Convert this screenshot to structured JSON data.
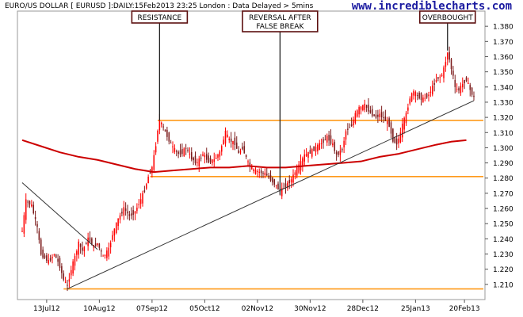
{
  "header": {
    "title": "EURO/US DOLLAR [ EURUSD ]:DAILY:15Feb2013 23:25 London : Data Delayed > 5mins",
    "watermark": "www.incrediblecharts.com"
  },
  "chart_data": {
    "type": "candlestick",
    "ylim": [
      1.2,
      1.39
    ],
    "y_ticks": [
      "1.380",
      "1.370",
      "1.360",
      "1.350",
      "1.340",
      "1.330",
      "1.320",
      "1.310",
      "1.300",
      "1.290",
      "1.280",
      "1.270",
      "1.260",
      "1.250",
      "1.240",
      "1.230",
      "1.220",
      "1.210"
    ],
    "x_ticks": [
      {
        "label": "13Jul12",
        "day": 13
      },
      {
        "label": "10Aug12",
        "day": 41
      },
      {
        "label": "07Sep12",
        "day": 69
      },
      {
        "label": "05Oct12",
        "day": 97
      },
      {
        "label": "02Nov12",
        "day": 125
      },
      {
        "label": "30Nov12",
        "day": 153
      },
      {
        "label": "28Dec12",
        "day": 181
      },
      {
        "label": "25Jan13",
        "day": 209
      },
      {
        "label": "20Feb13",
        "day": 235
      }
    ],
    "xlim": [
      0,
      240
    ],
    "close_path": [
      [
        0,
        1.245
      ],
      [
        2,
        1.265
      ],
      [
        5,
        1.262
      ],
      [
        8,
        1.247
      ],
      [
        10,
        1.23
      ],
      [
        14,
        1.225
      ],
      [
        17,
        1.23
      ],
      [
        20,
        1.222
      ],
      [
        22,
        1.213
      ],
      [
        24,
        1.209
      ],
      [
        26,
        1.22
      ],
      [
        28,
        1.228
      ],
      [
        30,
        1.237
      ],
      [
        32,
        1.232
      ],
      [
        35,
        1.24
      ],
      [
        38,
        1.235
      ],
      [
        40,
        1.237
      ],
      [
        43,
        1.228
      ],
      [
        46,
        1.233
      ],
      [
        48,
        1.243
      ],
      [
        51,
        1.253
      ],
      [
        54,
        1.26
      ],
      [
        57,
        1.255
      ],
      [
        60,
        1.258
      ],
      [
        63,
        1.266
      ],
      [
        65,
        1.272
      ],
      [
        67,
        1.281
      ],
      [
        69,
        1.287
      ],
      [
        71,
        1.302
      ],
      [
        72,
        1.312
      ],
      [
        73,
        1.318
      ],
      [
        75,
        1.313
      ],
      [
        78,
        1.305
      ],
      [
        80,
        1.3
      ],
      [
        83,
        1.296
      ],
      [
        85,
        1.297
      ],
      [
        87,
        1.3
      ],
      [
        90,
        1.293
      ],
      [
        93,
        1.29
      ],
      [
        96,
        1.296
      ],
      [
        99,
        1.291
      ],
      [
        102,
        1.292
      ],
      [
        105,
        1.297
      ],
      [
        108,
        1.31
      ],
      [
        110,
        1.305
      ],
      [
        113,
        1.303
      ],
      [
        115,
        1.296
      ],
      [
        117,
        1.3
      ],
      [
        120,
        1.29
      ],
      [
        123,
        1.285
      ],
      [
        126,
        1.284
      ],
      [
        129,
        1.283
      ],
      [
        132,
        1.279
      ],
      [
        135,
        1.275
      ],
      [
        137,
        1.271
      ],
      [
        140,
        1.275
      ],
      [
        143,
        1.279
      ],
      [
        145,
        1.284
      ],
      [
        148,
        1.29
      ],
      [
        150,
        1.295
      ],
      [
        153,
        1.297
      ],
      [
        156,
        1.3
      ],
      [
        159,
        1.303
      ],
      [
        162,
        1.307
      ],
      [
        165,
        1.302
      ],
      [
        167,
        1.295
      ],
      [
        170,
        1.299
      ],
      [
        172,
        1.311
      ],
      [
        175,
        1.315
      ],
      [
        177,
        1.322
      ],
      [
        179,
        1.326
      ],
      [
        182,
        1.328
      ],
      [
        185,
        1.323
      ],
      [
        188,
        1.32
      ],
      [
        190,
        1.322
      ],
      [
        193,
        1.318
      ],
      [
        195,
        1.315
      ],
      [
        197,
        1.305
      ],
      [
        199,
        1.303
      ],
      [
        201,
        1.309
      ],
      [
        202,
        1.315
      ],
      [
        204,
        1.322
      ],
      [
        206,
        1.333
      ],
      [
        208,
        1.337
      ],
      [
        210,
        1.334
      ],
      [
        213,
        1.332
      ],
      [
        216,
        1.335
      ],
      [
        218,
        1.34
      ],
      [
        220,
        1.345
      ],
      [
        222,
        1.347
      ],
      [
        223,
        1.348
      ],
      [
        224,
        1.352
      ],
      [
        225,
        1.357
      ],
      [
        226,
        1.363
      ],
      [
        227,
        1.358
      ],
      [
        228,
        1.352
      ],
      [
        229,
        1.347
      ],
      [
        230,
        1.339
      ],
      [
        232,
        1.338
      ],
      [
        234,
        1.342
      ],
      [
        236,
        1.345
      ],
      [
        238,
        1.338
      ],
      [
        240,
        1.333
      ]
    ],
    "moving_average": [
      [
        0,
        1.305
      ],
      [
        10,
        1.301
      ],
      [
        20,
        1.297
      ],
      [
        30,
        1.294
      ],
      [
        40,
        1.292
      ],
      [
        50,
        1.289
      ],
      [
        60,
        1.286
      ],
      [
        70,
        1.284
      ],
      [
        80,
        1.285
      ],
      [
        90,
        1.286
      ],
      [
        100,
        1.287
      ],
      [
        110,
        1.287
      ],
      [
        120,
        1.288
      ],
      [
        130,
        1.287
      ],
      [
        140,
        1.287
      ],
      [
        150,
        1.288
      ],
      [
        160,
        1.289
      ],
      [
        170,
        1.29
      ],
      [
        180,
        1.291
      ],
      [
        190,
        1.294
      ],
      [
        200,
        1.296
      ],
      [
        210,
        1.299
      ],
      [
        220,
        1.302
      ],
      [
        228,
        1.304
      ],
      [
        236,
        1.305
      ]
    ],
    "horizontal_lines": [
      1.318,
      1.281,
      1.207
    ],
    "trendlines": [
      {
        "from": [
          0,
          1.277
        ],
        "to": [
          40,
          1.233
        ]
      },
      {
        "from": [
          24,
          1.207
        ],
        "to": [
          240,
          1.331
        ]
      }
    ],
    "annotations": [
      {
        "lines": [
          "RESISTANCE"
        ],
        "day": 73
      },
      {
        "lines": [
          "REVERSAL AFTER",
          "FALSE BREAK"
        ],
        "day": 137
      },
      {
        "lines": [
          "OVERBOUGHT"
        ],
        "day": 226
      }
    ],
    "colors": {
      "candle_up": "#ff0000",
      "candle_down": "#7b1a1a",
      "moving_average": "#cc0000",
      "support_resistance": "#ff9a1a",
      "trendline": "#333333",
      "annotation_border": "#5c0f0f",
      "watermark": "#1a1aa0"
    }
  }
}
